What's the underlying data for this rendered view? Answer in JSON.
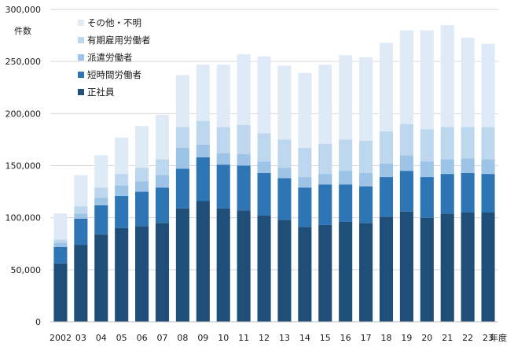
{
  "chart_data": {
    "type": "bar",
    "stacked": true,
    "y_unit_label": "件数",
    "x_unit_label": "年度",
    "categories": [
      "2002",
      "03",
      "04",
      "05",
      "06",
      "07",
      "08",
      "09",
      "10",
      "11",
      "12",
      "13",
      "14",
      "15",
      "16",
      "17",
      "18",
      "19",
      "20",
      "21",
      "22",
      "23"
    ],
    "ylim": [
      0,
      300000
    ],
    "yticks": [
      0,
      50000,
      100000,
      150000,
      200000,
      250000,
      300000
    ],
    "ytick_labels": [
      "0",
      "50,000",
      "100,000",
      "150,000",
      "200,000",
      "250,000",
      "300,000"
    ],
    "grid": "horizontal",
    "legend_position": "top-left",
    "series": [
      {
        "name": "正社員",
        "color": "#1f4e79",
        "values": [
          56000,
          74000,
          84000,
          90000,
          92000,
          95000,
          109000,
          116000,
          109000,
          107000,
          102000,
          98000,
          91000,
          93000,
          96000,
          95000,
          101000,
          106000,
          100000,
          104000,
          105000,
          105000
        ]
      },
      {
        "name": "短時間労働者",
        "color": "#2e75b6",
        "values": [
          16000,
          25000,
          28000,
          31000,
          33000,
          34000,
          38000,
          42000,
          42000,
          43000,
          41000,
          40000,
          38000,
          39000,
          36000,
          35000,
          38000,
          39000,
          39000,
          38000,
          38000,
          37000
        ]
      },
      {
        "name": "派遣労働者",
        "color": "#9dc3e6",
        "values": [
          4000,
          5000,
          7000,
          10000,
          10000,
          12000,
          20000,
          12000,
          11000,
          11000,
          11000,
          10000,
          10000,
          10000,
          13000,
          13000,
          13000,
          15000,
          15000,
          14000,
          14000,
          14000
        ]
      },
      {
        "name": "有期雇用労働者",
        "color": "#bdd7ee",
        "values": [
          3000,
          7000,
          10000,
          11000,
          13000,
          15000,
          20000,
          23000,
          25000,
          28000,
          27000,
          27000,
          28000,
          29000,
          30000,
          31000,
          31000,
          30000,
          31000,
          31000,
          30000,
          31000
        ]
      },
      {
        "name": "その他・不明",
        "color": "#deebf7",
        "values": [
          25000,
          30000,
          31000,
          35000,
          40000,
          43000,
          50000,
          54000,
          60000,
          68000,
          74000,
          71000,
          72000,
          76000,
          81000,
          80000,
          85000,
          90000,
          95000,
          98000,
          86000,
          80000
        ]
      }
    ]
  }
}
